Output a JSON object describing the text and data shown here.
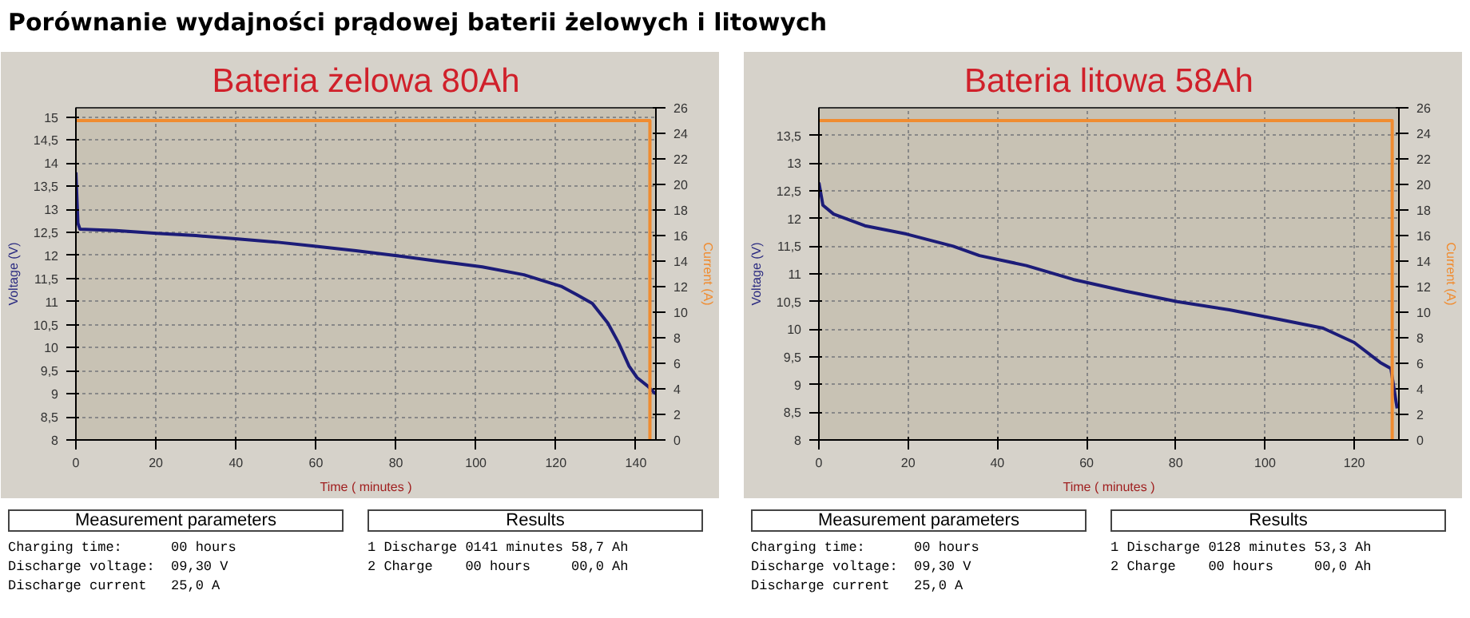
{
  "chart_data": [
    {
      "type": "other",
      "title": "Porównanie wydajności prądowej baterii żelowych i litowych"
    },
    {
      "type": "line",
      "title": "Bateria żelowa 80Ah",
      "xlabel": "Time ( minutes )",
      "ylabel": "Voltage (V)",
      "y2label": "Current (A)",
      "xlim": [
        0,
        145
      ],
      "xticks": [
        0,
        20,
        40,
        60,
        80,
        100,
        120,
        140
      ],
      "ylim": [
        8,
        15.2
      ],
      "yticks": [
        8,
        {
          "value": 8.5,
          "label": "8,5"
        },
        9,
        {
          "value": 9.5,
          "label": "9,5"
        },
        10,
        {
          "value": 10.5,
          "label": "10,5"
        },
        11,
        {
          "value": 11.5,
          "label": "11,5"
        },
        12,
        {
          "value": 12.5,
          "label": "12,5"
        },
        13,
        {
          "value": 13.5,
          "label": "13,5"
        },
        14,
        {
          "value": 14.5,
          "label": "14,5"
        },
        15
      ],
      "y2lim": [
        0,
        26
      ],
      "y2ticks": [
        0,
        2,
        4,
        6,
        8,
        10,
        12,
        14,
        16,
        18,
        20,
        22,
        24,
        26
      ],
      "grid": true,
      "line_style": "solid",
      "marker": "none",
      "series": [
        {
          "color": "#1c1c78",
          "x": [
            0,
            0.5,
            1,
            10,
            20.2,
            30,
            39.9,
            50,
            59.6,
            70,
            80.6,
            90,
            101.6,
            112,
            121.3,
            125.2,
            129.1,
            133,
            135.7,
            138.3,
            140.3,
            142.9,
            144.9
          ],
          "values": [
            13.8,
            12.7,
            12.57,
            12.54,
            12.48,
            12.43,
            12.36,
            12.29,
            12.2,
            12.1,
            11.99,
            11.88,
            11.75,
            11.58,
            11.33,
            11.15,
            10.96,
            10.53,
            10.1,
            9.6,
            9.35,
            9.17,
            9.0
          ]
        },
        {
          "color": "#f08c30",
          "axis": "y2",
          "x": [
            0,
            143.5,
            143.5
          ],
          "values": [
            25,
            25,
            0
          ]
        }
      ],
      "annotations": [
        "Measurement parameters",
        "Charging time:      00 hours",
        "Discharge voltage:  09,30 V",
        "Discharge current   25,0 A",
        "Results",
        "1 Discharge 0141 minutes 58,7 Ah",
        "2 Charge    00 hours     00,0 Ah"
      ]
    },
    {
      "type": "line",
      "title": "Bateria litowa 58Ah",
      "xlabel": "Time ( minutes )",
      "ylabel": "Voltage (V)",
      "y2label": "Current (A)",
      "xlim": [
        0,
        130
      ],
      "xticks": [
        0,
        20,
        40,
        60,
        80,
        100,
        120
      ],
      "ylim": [
        8,
        14
      ],
      "yticks": [
        8,
        {
          "value": 8.5,
          "label": "8,5"
        },
        9,
        {
          "value": 9.5,
          "label": "9,5"
        },
        10,
        {
          "value": 10.5,
          "label": "10,5"
        },
        11,
        {
          "value": 11.5,
          "label": "11,5"
        },
        12,
        {
          "value": 12.5,
          "label": "12,5"
        },
        13,
        {
          "value": 13.5,
          "label": "13,5"
        }
      ],
      "y2lim": [
        0,
        26
      ],
      "y2ticks": [
        0,
        2,
        4,
        6,
        8,
        10,
        12,
        14,
        16,
        18,
        20,
        22,
        24,
        26
      ],
      "grid": true,
      "line_style": "solid",
      "marker": "none",
      "series": [
        {
          "color": "#1c1c78",
          "x": [
            0,
            0.9,
            3.3,
            10.3,
            19.6,
            30.1,
            36,
            46.5,
            57,
            68.6,
            80.3,
            92,
            103.6,
            113,
            120,
            125.8,
            128.2,
            129.6
          ],
          "values": [
            12.65,
            12.24,
            12.08,
            11.87,
            11.72,
            11.5,
            11.33,
            11.15,
            10.9,
            10.69,
            10.5,
            10.35,
            10.17,
            10.02,
            9.76,
            9.4,
            9.29,
            8.57
          ]
        },
        {
          "color": "#f08c30",
          "axis": "y2",
          "x": [
            0,
            128.5,
            128.5
          ],
          "values": [
            25,
            25,
            0
          ]
        }
      ],
      "annotations": [
        "Measurement parameters",
        "Charging time:      00 hours",
        "Discharge voltage:  09,30 V",
        "Discharge current   25,0 A",
        "Results",
        "1 Discharge 0128 minutes 53,3 Ah",
        "2 Charge    00 hours     00,0 Ah"
      ]
    }
  ]
}
